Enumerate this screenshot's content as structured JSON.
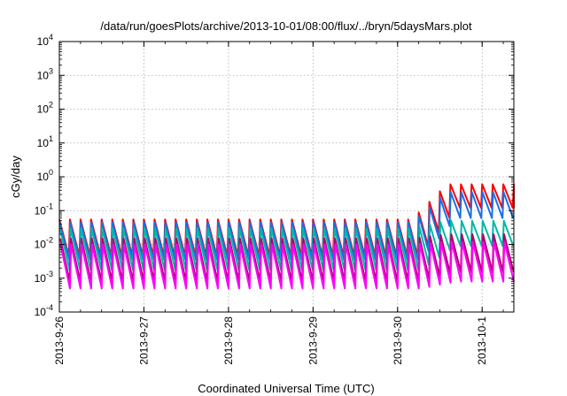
{
  "chart_data": {
    "type": "line",
    "title": "/data/run/goesPlots/archive/2013-10-01/08:00/flux/../bryn/5daysMars.plot",
    "xlabel": "Coordinated Universal Time (UTC)",
    "ylabel": "cGy/day",
    "yscale": "log",
    "ylim": [
      0.0001,
      10000
    ],
    "xlim": [
      "2013-09-26T00:00",
      "2013-10-01T09:00"
    ],
    "x_tick_labels": [
      "2013-9-26",
      "2013-9-27",
      "2013-9-28",
      "2013-9-29",
      "2013-9-30",
      "2013-10-1"
    ],
    "x_tick_dates": [
      "2013-09-26T00:00",
      "2013-09-27T00:00",
      "2013-09-28T00:00",
      "2013-09-29T00:00",
      "2013-09-30T00:00",
      "2013-10-01T00:00"
    ],
    "y_ticks": [
      {
        "base": "10",
        "exp": "-4",
        "value": 0.0001
      },
      {
        "base": "10",
        "exp": "-3",
        "value": 0.001
      },
      {
        "base": "10",
        "exp": "-2",
        "value": 0.01
      },
      {
        "base": "10",
        "exp": "-1",
        "value": 0.1
      },
      {
        "base": "10",
        "exp": "0",
        "value": 1
      },
      {
        "base": "10",
        "exp": "1",
        "value": 10
      },
      {
        "base": "10",
        "exp": "2",
        "value": 100
      },
      {
        "base": "10",
        "exp": "3",
        "value": 1000
      },
      {
        "base": "10",
        "exp": "4",
        "value": 10000
      }
    ],
    "grid": true,
    "cycle_hours": 3,
    "series": [
      {
        "color": "#ff0000",
        "quiet_peak": 0.055,
        "quiet_trough": 0.0045,
        "event_peak": 0.6,
        "event_trough": 0.12
      },
      {
        "color": "#1a6fe8",
        "quiet_peak": 0.045,
        "quiet_trough": 0.0035,
        "event_peak": 0.35,
        "event_trough": 0.06
      },
      {
        "color": "#00b7a8",
        "quiet_peak": 0.03,
        "quiet_trough": 0.0018,
        "event_peak": 0.05,
        "event_trough": 0.009
      },
      {
        "color": "#b0006a",
        "quiet_peak": 0.015,
        "quiet_trough": 0.0008,
        "event_peak": 0.02,
        "event_trough": 0.0015
      },
      {
        "color": "#ff00ff",
        "quiet_peak": 0.01,
        "quiet_trough": 0.0005,
        "event_peak": 0.012,
        "event_trough": 0.0008
      }
    ],
    "event_window": [
      "2013-09-30T04:00",
      "2013-10-01T09:00"
    ]
  }
}
